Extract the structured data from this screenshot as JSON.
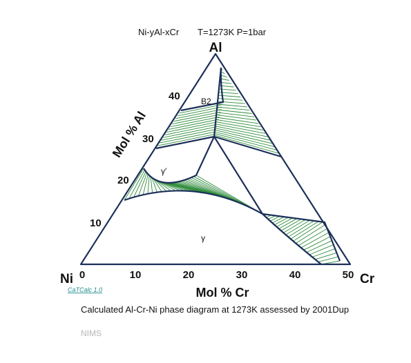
{
  "header": {
    "system": "Ni-yAl-xCr",
    "conditions": "T=1273K  P=1bar"
  },
  "corners": {
    "top": "Al",
    "left": "Ni",
    "right": "Cr"
  },
  "axes": {
    "bottom_title": "Mol % Cr",
    "left_title": "Mol % Al",
    "bottom_ticks": [
      "0",
      "10",
      "20",
      "30",
      "40",
      "50"
    ],
    "left_ticks": [
      "10",
      "20",
      "30",
      "40"
    ]
  },
  "phases": {
    "b2": "B2",
    "gamma_prime": "γ′",
    "gamma": "γ"
  },
  "logo": "CaTCalc 1.0",
  "caption": "Calculated Al-Cr-Ni phase diagram at 1273K assessed by 2001Dup",
  "watermark": "NIMS",
  "colors": {
    "boundary": "#1c2f5a",
    "tie_line": "#2e8b3a"
  }
}
